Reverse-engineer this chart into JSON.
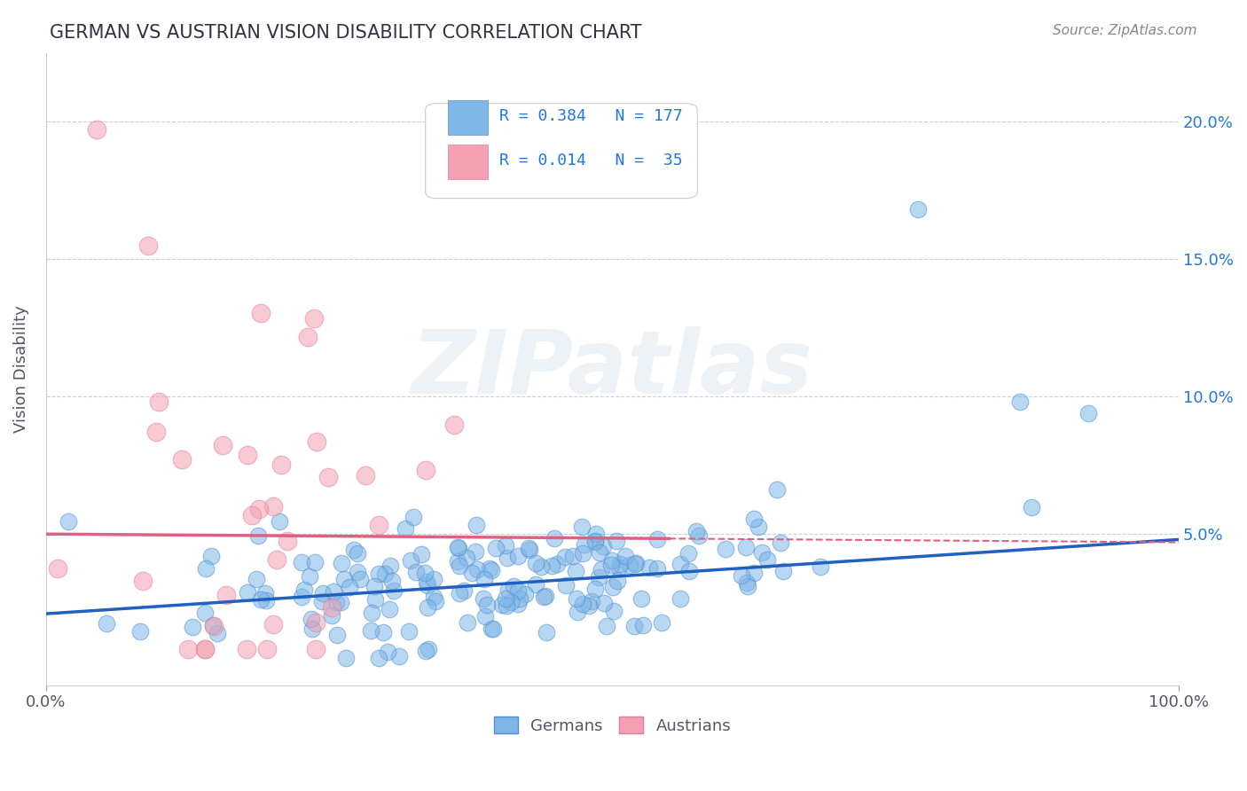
{
  "title": "GERMAN VS AUSTRIAN VISION DISABILITY CORRELATION CHART",
  "source": "Source: ZipAtlas.com",
  "ylabel": "Vision Disability",
  "xlim": [
    0,
    1
  ],
  "ylim": [
    -0.005,
    0.225
  ],
  "yticks": [
    0.0,
    0.05,
    0.1,
    0.15,
    0.2
  ],
  "ytick_labels": [
    "",
    "5.0%",
    "10.0%",
    "15.0%",
    "20.0%"
  ],
  "xtick_labels": [
    "0.0%",
    "100.0%"
  ],
  "german_R": 0.384,
  "german_N": 177,
  "austrian_R": 0.014,
  "austrian_N": 35,
  "blue_color": "#7EB6E8",
  "pink_color": "#F4A0B0",
  "blue_line_color": "#2060C0",
  "pink_line_color": "#E06080",
  "title_color": "#333344",
  "axis_label_color": "#555566",
  "legend_R_color": "#2277DD",
  "watermark": "ZIPatlas",
  "background_color": "#FFFFFF",
  "grid_color": "#CCCCDD",
  "title_fontsize": 15,
  "seed": 42
}
